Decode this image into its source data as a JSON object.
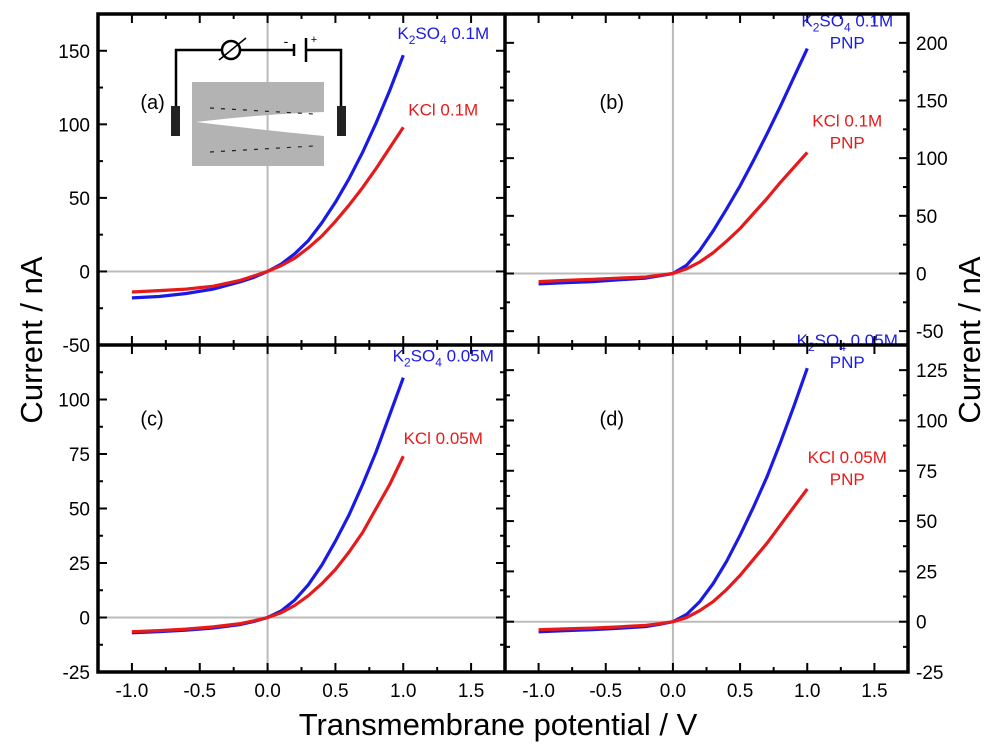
{
  "colors": {
    "blue": "#1a1ae6",
    "red": "#e61a1a",
    "zero_line": "#bbbbbb",
    "inset_gray": "#b3b3b3"
  },
  "chart_data": [
    {
      "panel": "(a)",
      "type": "line",
      "xlim": [
        -1.25,
        1.75
      ],
      "ylim": [
        -50,
        175
      ],
      "xticks": [
        -1.0,
        -0.5,
        0.0,
        0.5,
        1.0,
        1.5
      ],
      "yticks": [
        -50,
        0,
        50,
        100,
        150
      ],
      "ytick_side": "left",
      "series": [
        {
          "name": "K2SO4 0.1M",
          "label": {
            "main": "K",
            "sub1": "2",
            "mid": "SO",
            "sub2": "4",
            "tail": " 0.1M",
            "line2": ""
          },
          "color": "#1a1ae6",
          "x": [
            -1.0,
            -0.8,
            -0.6,
            -0.4,
            -0.2,
            -0.1,
            0.0,
            0.1,
            0.2,
            0.3,
            0.4,
            0.5,
            0.6,
            0.7,
            0.8,
            0.9,
            1.0
          ],
          "y": [
            -18,
            -17,
            -15,
            -12,
            -7,
            -4,
            0,
            5,
            12,
            21,
            33,
            47,
            63,
            81,
            101,
            123,
            147
          ]
        },
        {
          "name": "KCl 0.1M",
          "label": {
            "main": "KCl 0.1M",
            "sub1": "",
            "mid": "",
            "sub2": "",
            "tail": "",
            "line2": ""
          },
          "color": "#e61a1a",
          "x": [
            -1.0,
            -0.8,
            -0.6,
            -0.4,
            -0.2,
            -0.1,
            0.0,
            0.1,
            0.2,
            0.3,
            0.4,
            0.5,
            0.6,
            0.7,
            0.8,
            0.9,
            1.0
          ],
          "y": [
            -14,
            -13,
            -12,
            -10,
            -6,
            -3,
            0,
            4,
            9,
            16,
            24,
            34,
            45,
            57,
            70,
            84,
            98
          ]
        }
      ]
    },
    {
      "panel": "(b)",
      "type": "line",
      "xlim": [
        -1.25,
        1.75
      ],
      "ylim": [
        -62,
        225
      ],
      "xticks": [
        -1.0,
        -0.5,
        0.0,
        0.5,
        1.0,
        1.5
      ],
      "yticks": [
        -50,
        0,
        50,
        100,
        150,
        200
      ],
      "ytick_side": "right",
      "series": [
        {
          "name": "K2SO4 0.1M PNP",
          "label": {
            "main": "K",
            "sub1": "2",
            "mid": "SO",
            "sub2": "4",
            "tail": " 0.1M",
            "line2": "PNP"
          },
          "color": "#1a1ae6",
          "x": [
            -1.0,
            -0.8,
            -0.6,
            -0.4,
            -0.2,
            -0.1,
            0.0,
            0.1,
            0.2,
            0.3,
            0.4,
            0.5,
            0.6,
            0.7,
            0.8,
            0.9,
            1.0
          ],
          "y": [
            -9,
            -8,
            -7,
            -5.5,
            -4,
            -2,
            0,
            7,
            20,
            37,
            56,
            76,
            98,
            121,
            145,
            170,
            195
          ]
        },
        {
          "name": "KCl 0.1M PNP",
          "label": {
            "main": "KCl 0.1M",
            "sub1": "",
            "mid": "",
            "sub2": "",
            "tail": "",
            "line2": "PNP"
          },
          "color": "#e61a1a",
          "x": [
            -1.0,
            -0.8,
            -0.6,
            -0.4,
            -0.2,
            -0.1,
            0.0,
            0.1,
            0.2,
            0.3,
            0.4,
            0.5,
            0.6,
            0.7,
            0.8,
            0.9,
            1.0
          ],
          "y": [
            -7,
            -6,
            -5,
            -4,
            -3,
            -1.5,
            0,
            4,
            10,
            18,
            28,
            39,
            52,
            65,
            79,
            92,
            105
          ]
        }
      ]
    },
    {
      "panel": "(c)",
      "type": "line",
      "xlim": [
        -1.25,
        1.75
      ],
      "ylim": [
        -25,
        125
      ],
      "xticks": [
        -1.0,
        -0.5,
        0.0,
        0.5,
        1.0,
        1.5
      ],
      "yticks": [
        -25,
        0,
        25,
        50,
        75,
        100
      ],
      "ytick_side": "left",
      "series": [
        {
          "name": "K2SO4 0.05M",
          "label": {
            "main": "K",
            "sub1": "2",
            "mid": "SO",
            "sub2": "4",
            "tail": " 0.05M",
            "line2": ""
          },
          "color": "#1a1ae6",
          "x": [
            -1.0,
            -0.8,
            -0.6,
            -0.4,
            -0.2,
            -0.1,
            0.0,
            0.1,
            0.2,
            0.3,
            0.4,
            0.5,
            0.6,
            0.7,
            0.8,
            0.9,
            1.0
          ],
          "y": [
            -7,
            -6.5,
            -5.8,
            -4.8,
            -3.2,
            -1.8,
            0,
            3,
            8,
            15,
            24,
            35,
            47,
            61,
            76,
            93,
            110
          ]
        },
        {
          "name": "KCl 0.05M",
          "label": {
            "main": "KCl 0.05M",
            "sub1": "",
            "mid": "",
            "sub2": "",
            "tail": "",
            "line2": ""
          },
          "color": "#e61a1a",
          "x": [
            -1.0,
            -0.8,
            -0.6,
            -0.4,
            -0.2,
            -0.1,
            0.0,
            0.1,
            0.2,
            0.3,
            0.4,
            0.5,
            0.6,
            0.7,
            0.8,
            0.9,
            1.0
          ],
          "y": [
            -6.5,
            -6,
            -5.3,
            -4.3,
            -2.8,
            -1.5,
            0,
            2.2,
            5.5,
            10,
            15.5,
            22,
            30,
            39,
            50,
            61,
            74
          ]
        }
      ]
    },
    {
      "panel": "(d)",
      "type": "line",
      "xlim": [
        -1.25,
        1.75
      ],
      "ylim": [
        -25,
        137.5
      ],
      "xticks": [
        -1.0,
        -0.5,
        0.0,
        0.5,
        1.0,
        1.5
      ],
      "yticks": [
        -25,
        0,
        25,
        50,
        75,
        100,
        125
      ],
      "ytick_side": "right",
      "series": [
        {
          "name": "K2SO4 0.05M PNP",
          "label": {
            "main": "K",
            "sub1": "2",
            "mid": "SO",
            "sub2": "4",
            "tail": " 0.05M",
            "line2": "PNP"
          },
          "color": "#1a1ae6",
          "x": [
            -1.0,
            -0.8,
            -0.6,
            -0.4,
            -0.2,
            -0.1,
            0.0,
            0.1,
            0.2,
            0.3,
            0.4,
            0.5,
            0.6,
            0.7,
            0.8,
            0.9,
            1.0
          ],
          "y": [
            -5,
            -4.5,
            -4,
            -3.3,
            -2.4,
            -1.3,
            0,
            3.5,
            10,
            19,
            30,
            43,
            57,
            72,
            89,
            107,
            126
          ]
        },
        {
          "name": "KCl 0.05M PNP",
          "label": {
            "main": "KCl 0.05M",
            "sub1": "",
            "mid": "",
            "sub2": "",
            "tail": "",
            "line2": "PNP"
          },
          "color": "#e61a1a",
          "x": [
            -1.0,
            -0.8,
            -0.6,
            -0.4,
            -0.2,
            -0.1,
            0.0,
            0.1,
            0.2,
            0.3,
            0.4,
            0.5,
            0.6,
            0.7,
            0.8,
            0.9,
            1.0
          ],
          "y": [
            -4,
            -3.6,
            -3.2,
            -2.6,
            -1.8,
            -1,
            0,
            2,
            5.5,
            10,
            16,
            23,
            31,
            39,
            48,
            57,
            66
          ]
        }
      ]
    }
  ],
  "axes": {
    "xlabel": "Transmembrane potential / V",
    "ylabel_left": "Current / nA",
    "ylabel_right": "Current / nA"
  },
  "inset": {
    "panel": "(a)",
    "description_icons": [
      "ammeter-icon",
      "battery-icon",
      "electrode-icon",
      "conical-nanopore-icon"
    ],
    "battery_minus": "-",
    "battery_plus": "+"
  }
}
